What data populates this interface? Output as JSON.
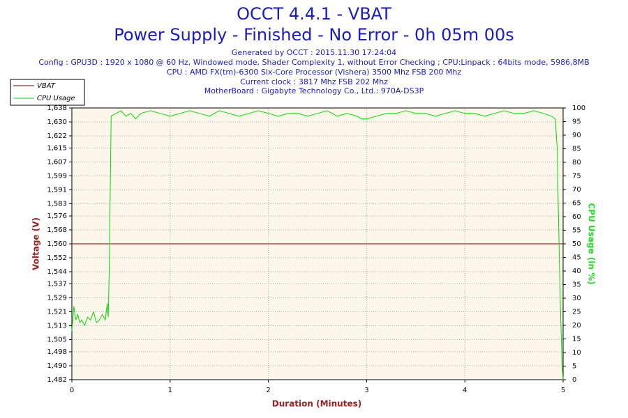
{
  "chart_data": {
    "type": "line",
    "title": [
      "OCCT 4.4.1 - VBAT",
      "Power Supply - Finished - No Error - 0h 05m 00s"
    ],
    "subtitle": [
      "Generated by OCCT : 2015.11.30 17:24:04",
      "Config : GPU3D : 1920 x 1080 @ 60 Hz, Windowed mode, Shader Complexity 1, without Error Checking ; CPU:Linpack : 64bits mode, 5986,8MB",
      "CPU : AMD FX(tm)-6300 Six-Core Processor (Vishera) 3500 Mhz FSB 200 Mhz",
      "Current clock : 3817 Mhz FSB 202 Mhz",
      "MotherBoard : Gigabyte Technology Co., Ltd.: 970A-DS3P"
    ],
    "x_label": "Duration (Minutes)",
    "y_label": "Voltage (V)",
    "y2_label": "CPU Usage (in %)",
    "xlim": [
      0,
      5
    ],
    "xticks": [
      0,
      1,
      2,
      3,
      4,
      5
    ],
    "ylim": [
      1.482,
      1.638
    ],
    "yticks": [
      {
        "value": 1.482,
        "label": "1,482"
      },
      {
        "value": 1.49,
        "label": "1,490"
      },
      {
        "value": 1.498,
        "label": "1,498"
      },
      {
        "value": 1.505,
        "label": "1,505"
      },
      {
        "value": 1.513,
        "label": "1,513"
      },
      {
        "value": 1.521,
        "label": "1,521"
      },
      {
        "value": 1.529,
        "label": "1,529"
      },
      {
        "value": 1.537,
        "label": "1,537"
      },
      {
        "value": 1.544,
        "label": "1,544"
      },
      {
        "value": 1.552,
        "label": "1,552"
      },
      {
        "value": 1.56,
        "label": "1,560"
      },
      {
        "value": 1.568,
        "label": "1,568"
      },
      {
        "value": 1.576,
        "label": "1,576"
      },
      {
        "value": 1.583,
        "label": "1,583"
      },
      {
        "value": 1.591,
        "label": "1,591"
      },
      {
        "value": 1.599,
        "label": "1,599"
      },
      {
        "value": 1.607,
        "label": "1,607"
      },
      {
        "value": 1.615,
        "label": "1,615"
      },
      {
        "value": 1.622,
        "label": "1,622"
      },
      {
        "value": 1.63,
        "label": "1,630"
      },
      {
        "value": 1.638,
        "label": "1,638"
      }
    ],
    "y2lim": [
      0,
      100
    ],
    "y2ticks": [
      0,
      5,
      10,
      15,
      20,
      25,
      30,
      35,
      40,
      45,
      50,
      55,
      60,
      65,
      70,
      75,
      80,
      85,
      90,
      95,
      100
    ],
    "grid": true,
    "legend": "top-left",
    "series": [
      {
        "name": "VBAT",
        "color": "#800000",
        "axis": "y",
        "x": [
          0,
          1,
          2,
          3,
          4,
          5
        ],
        "values": [
          1.56,
          1.56,
          1.56,
          1.56,
          1.56,
          1.56
        ]
      },
      {
        "name": "CPU Usage",
        "color": "#00dd00",
        "axis": "y2",
        "x": [
          0,
          0.02,
          0.04,
          0.06,
          0.08,
          0.1,
          0.13,
          0.16,
          0.19,
          0.22,
          0.25,
          0.28,
          0.31,
          0.34,
          0.36,
          0.37,
          0.38,
          0.4,
          0.45,
          0.5,
          0.55,
          0.6,
          0.65,
          0.7,
          0.8,
          0.9,
          1.0,
          1.1,
          1.2,
          1.3,
          1.4,
          1.5,
          1.6,
          1.7,
          1.8,
          1.9,
          2.0,
          2.1,
          2.2,
          2.3,
          2.4,
          2.5,
          2.6,
          2.7,
          2.8,
          2.9,
          2.95,
          3.0,
          3.1,
          3.2,
          3.3,
          3.4,
          3.5,
          3.6,
          3.7,
          3.8,
          3.9,
          4.0,
          4.1,
          4.2,
          4.3,
          4.4,
          4.5,
          4.6,
          4.7,
          4.8,
          4.88,
          4.92,
          4.94,
          4.95,
          4.97,
          4.99,
          5.0
        ],
        "values": [
          18,
          27,
          22,
          24,
          21,
          22,
          20,
          23,
          22,
          25,
          21,
          22,
          24,
          22,
          28,
          23,
          40,
          97,
          98,
          99,
          97,
          98,
          96,
          98,
          99,
          98,
          97,
          98,
          99,
          98,
          97,
          99,
          98,
          97,
          98,
          99,
          98,
          97,
          98,
          98,
          97,
          98,
          99,
          97,
          98,
          97,
          96,
          96,
          97,
          98,
          98,
          99,
          98,
          98,
          97,
          98,
          99,
          98,
          98,
          97,
          98,
          99,
          98,
          98,
          99,
          98,
          97,
          96,
          85,
          65,
          30,
          5,
          0
        ]
      }
    ]
  }
}
